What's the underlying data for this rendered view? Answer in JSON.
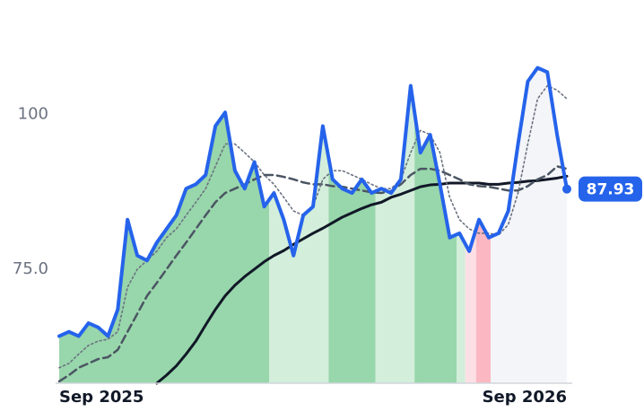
{
  "chart_data": {
    "type": "line",
    "categories": [
      "Sep 2025",
      null,
      null,
      null,
      null,
      null,
      null,
      null,
      null,
      null,
      null,
      null,
      null,
      null,
      null,
      null,
      null,
      null,
      null,
      null,
      null,
      null,
      null,
      null,
      null,
      null,
      null,
      null,
      null,
      null,
      null,
      null,
      null,
      null,
      null,
      null,
      null,
      null,
      null,
      null,
      null,
      null,
      null,
      null,
      null,
      null,
      null,
      null,
      null,
      null,
      null,
      null,
      "Sep 2026"
    ],
    "ylim": [
      56.6,
      111.2
    ],
    "yticks": [
      {
        "value": 75,
        "label": "75.0"
      },
      100
    ],
    "series": [
      {
        "color": "#2563eb",
        "values": [
          64.2,
          64.9,
          64.2,
          66.3,
          65.6,
          64.2,
          68.5,
          83.0,
          77.2,
          76.4,
          79.3,
          81.5,
          83.7,
          88.0,
          88.7,
          90.2,
          98.1,
          100.3,
          90.9,
          88.0,
          92.3,
          85.1,
          87.3,
          83.0,
          77.2,
          83.7,
          85.1,
          98.1,
          89.5,
          88.0,
          87.3,
          89.5,
          87.3,
          88.0,
          87.3,
          89.5,
          104.6,
          93.8,
          96.7,
          88.7,
          80.1,
          80.8,
          77.9,
          83.0,
          80.1,
          80.8,
          84.4,
          95.2,
          105.3,
          107.5,
          106.8,
          96.7,
          87.93
        ]
      },
      {
        "color": "#6b7280",
        "values": [
          59.1,
          59.8,
          61.3,
          62.7,
          63.4,
          63.7,
          64.9,
          72.1,
          75.0,
          76.4,
          77.9,
          80.1,
          81.5,
          83.7,
          85.8,
          88.0,
          91.6,
          95.2,
          95.2,
          93.8,
          92.3,
          90.2,
          88.7,
          86.6,
          84.4,
          83.7,
          85.1,
          89.5,
          90.9,
          90.9,
          90.2,
          89.5,
          88.7,
          88.0,
          88.0,
          89.5,
          93.8,
          97.4,
          96.7,
          93.8,
          86.6,
          83.0,
          81.5,
          80.8,
          80.8,
          80.5,
          82.2,
          87.3,
          95.2,
          102.5,
          104.6,
          103.9,
          102.5
        ]
      },
      {
        "color": "#4b5563",
        "values": [
          56.9,
          57.9,
          59.1,
          59.8,
          60.5,
          60.8,
          62.0,
          64.9,
          67.8,
          70.7,
          72.8,
          75.0,
          77.2,
          79.3,
          81.5,
          83.7,
          85.8,
          87.3,
          88.0,
          88.7,
          89.5,
          90.2,
          90.2,
          89.9,
          89.5,
          89.0,
          88.7,
          88.7,
          88.4,
          88.3,
          88.0,
          87.7,
          87.4,
          87.3,
          87.6,
          88.7,
          90.2,
          91.2,
          91.2,
          90.9,
          90.2,
          89.5,
          88.7,
          88.4,
          88.3,
          88.0,
          87.7,
          87.7,
          88.4,
          89.5,
          90.2,
          91.6,
          91.2
        ]
      },
      {
        "color": "#111827",
        "values": [
          null,
          null,
          null,
          null,
          null,
          null,
          null,
          null,
          null,
          null,
          56.6,
          57.9,
          59.4,
          61.3,
          63.4,
          66.0,
          68.5,
          70.7,
          72.4,
          73.8,
          75.0,
          76.2,
          77.2,
          78.0,
          79.0,
          79.9,
          80.8,
          81.6,
          82.5,
          83.4,
          84.1,
          84.8,
          85.4,
          85.8,
          86.6,
          87.1,
          87.7,
          88.3,
          88.6,
          88.7,
          88.9,
          88.9,
          88.9,
          88.9,
          88.7,
          88.7,
          88.9,
          89.0,
          89.2,
          89.3,
          89.5,
          89.7,
          90.0
        ]
      }
    ],
    "regions": [
      {
        "start": 0,
        "end": 21.5,
        "color": "#98d6ab"
      },
      {
        "start": 21.5,
        "end": 27.6,
        "color": "#d3eedb"
      },
      {
        "start": 27.6,
        "end": 32.4,
        "color": "#98d6ab"
      },
      {
        "start": 32.4,
        "end": 36.4,
        "color": "#d3eedb"
      },
      {
        "start": 36.4,
        "end": 40.7,
        "color": "#98d6ab"
      },
      {
        "start": 40.7,
        "end": 41.6,
        "color": "#d3eedb"
      },
      {
        "start": 41.6,
        "end": 42.7,
        "color": "#fde0e5"
      },
      {
        "start": 42.7,
        "end": 44.2,
        "color": "#fbb8c2"
      },
      {
        "start": 44.2,
        "end": 52,
        "color": "#f4f5f8"
      }
    ]
  }
}
